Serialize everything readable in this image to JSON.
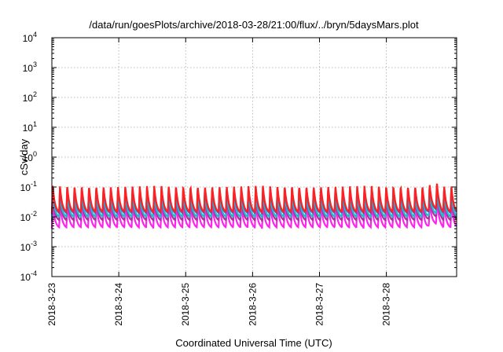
{
  "chart_data": {
    "type": "line",
    "title": "/data/run/goesPlots/archive/2018-03-28/21:00/flux/../bryn/5daysMars.plot",
    "xlabel": "Coordinated Universal Time (UTC)",
    "ylabel": "cSv/day",
    "yscale": "log",
    "ylim_exponents": [
      -4,
      4
    ],
    "yticks": [
      {
        "base": "10",
        "exp": "-4"
      },
      {
        "base": "10",
        "exp": "-3"
      },
      {
        "base": "10",
        "exp": "-2"
      },
      {
        "base": "10",
        "exp": "-1"
      },
      {
        "base": "10",
        "exp": "0"
      },
      {
        "base": "10",
        "exp": "1"
      },
      {
        "base": "10",
        "exp": "2"
      },
      {
        "base": "10",
        "exp": "3"
      },
      {
        "base": "10",
        "exp": "4"
      }
    ],
    "xticks": [
      "2018-3-23",
      "2018-3-24",
      "2018-3-25",
      "2018-3-26",
      "2018-3-27",
      "2018-3-28"
    ],
    "xlim_days": [
      0,
      6.05
    ],
    "grid": true,
    "legend": "none",
    "period_hours": 2.6,
    "series": [
      {
        "color": "#ff2020",
        "min": 0.013,
        "max": 0.11
      },
      {
        "color": "#3366dd",
        "min": 0.012,
        "max": 0.1
      },
      {
        "color": "#22bbcc",
        "min": 0.009,
        "max": 0.06
      },
      {
        "color": "#aa3399",
        "min": 0.007,
        "max": 0.045
      },
      {
        "color": "#ff22ee",
        "min": 0.004,
        "max": 0.028
      }
    ]
  }
}
